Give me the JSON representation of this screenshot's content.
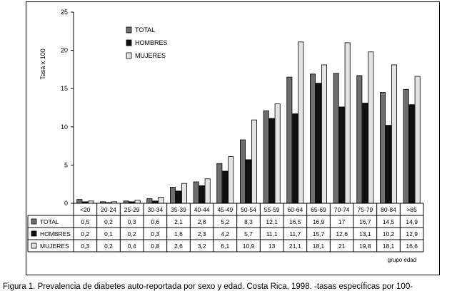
{
  "chart_data": {
    "type": "bar",
    "ylabel": "Tasa x 100",
    "xlabel": "grupo edad",
    "ylim": [
      0,
      25
    ],
    "yticks": [
      0,
      5,
      10,
      15,
      20,
      25
    ],
    "categories": [
      "<20",
      "20-24",
      "25-29",
      "30-34",
      "35-39",
      "40-44",
      "45-49",
      "50-54",
      "55-59",
      "60-64",
      "65-69",
      "70-74",
      "75-79",
      "80-84",
      ">85"
    ],
    "series": [
      {
        "name": "TOTAL",
        "color": "#6e6e6e",
        "values": [
          0.5,
          0.2,
          0.3,
          0.6,
          2.1,
          2.8,
          5.2,
          8.3,
          12.1,
          16.5,
          16.9,
          17,
          16.7,
          14.5,
          14.9
        ],
        "labels": [
          "0,5",
          "0,2",
          "0,3",
          "0,6",
          "2,1",
          "2,8",
          "5,2",
          "8,3",
          "12,1",
          "16,5",
          "16,9",
          "17",
          "16,7",
          "14,5",
          "14,9"
        ]
      },
      {
        "name": "HOMBRES",
        "color": "#111111",
        "values": [
          0.2,
          0.1,
          0.2,
          0.3,
          1.6,
          2.3,
          4.2,
          5.7,
          11.1,
          11.7,
          15.7,
          12.6,
          13.1,
          10.2,
          12.9
        ],
        "labels": [
          "0,2",
          "0,1",
          "0,2",
          "0,3",
          "1,6",
          "2,3",
          "4,2",
          "5,7",
          "11,1",
          "11,7",
          "15,7",
          "12,6",
          "13,1",
          "10,2",
          "12,9"
        ]
      },
      {
        "name": "MUJERES",
        "color": "#e3e3e3",
        "values": [
          0.3,
          0.2,
          0.4,
          0.8,
          2.6,
          3.2,
          6.1,
          10.9,
          13,
          21.1,
          18.1,
          21,
          19.8,
          18.1,
          16.6
        ],
        "labels": [
          "0,3",
          "0,2",
          "0,4",
          "0,8",
          "2,6",
          "3,2",
          "6,1",
          "10,9",
          "13",
          "21,1",
          "18,1",
          "21",
          "19,8",
          "18,1",
          "16,6"
        ]
      }
    ],
    "legend": "top-left",
    "grid": false
  },
  "caption": "Figura 1. Prevalencia de diabetes auto-reportada por sexo y edad. Costa Rica, 1998. -tasas específicas por 100-"
}
